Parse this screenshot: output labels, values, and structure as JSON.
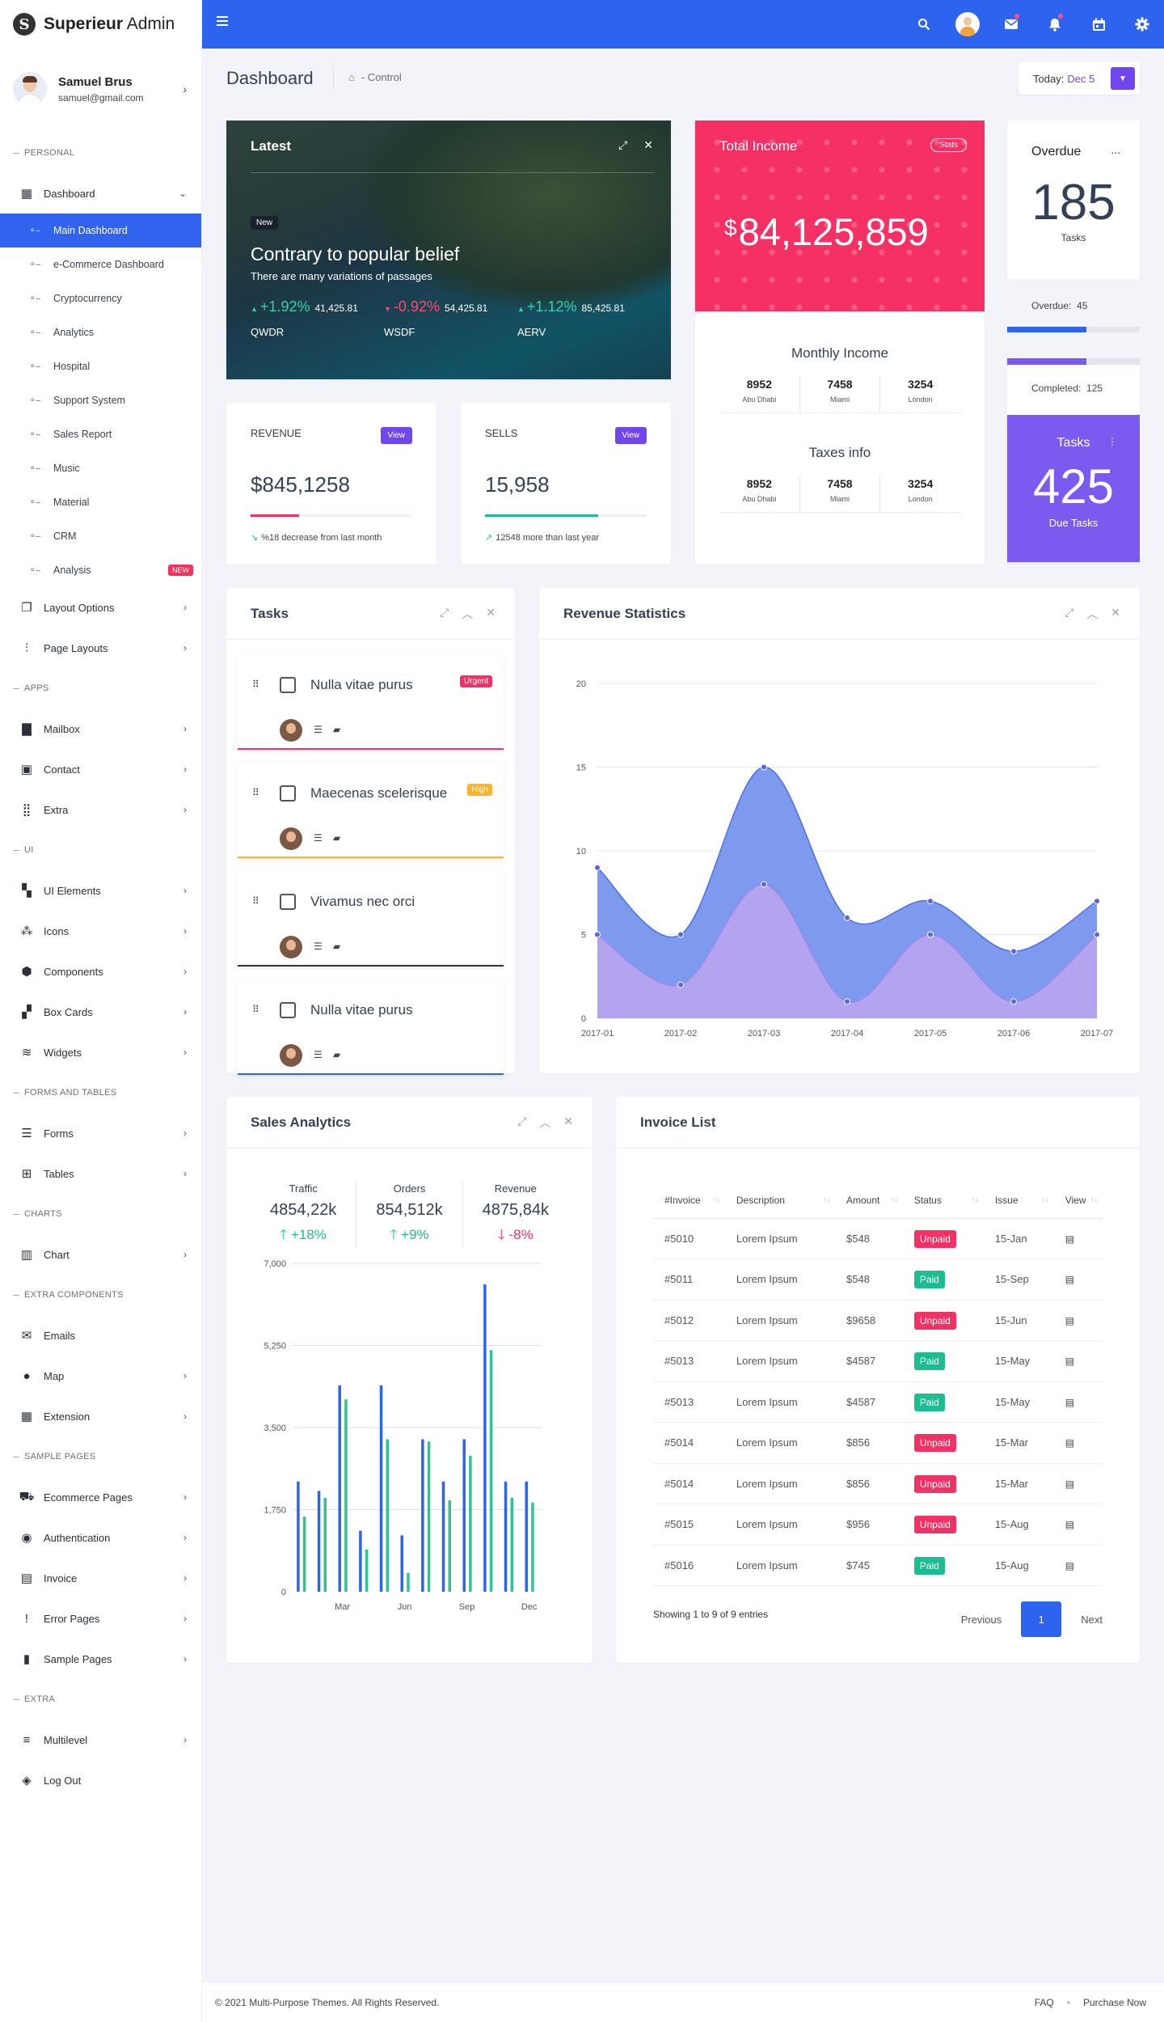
{
  "brand": {
    "name_bold": "Superieur",
    "name_rest": " Admin",
    "logo_letter": "S"
  },
  "user": {
    "name": "Samuel Brus",
    "email": "samuel@gmail.com"
  },
  "sidebar": {
    "sections": [
      {
        "header": "PERSONAL"
      },
      {
        "header": "APPS"
      },
      {
        "header": "UI"
      },
      {
        "header": "FORMS And TABLES"
      },
      {
        "header": "CHARTS"
      },
      {
        "header": "EXTRA COMPONENTS"
      },
      {
        "header": "SAMPLE PAGES"
      },
      {
        "header": "EXTRA"
      }
    ],
    "dashboard": {
      "label": "Dashboard",
      "children": [
        "Main Dashboard",
        "e-Commerce Dashboard",
        "Cryptocurrency",
        "Analytics",
        "Hospital",
        "Support System",
        "Sales Report",
        "Music",
        "Material",
        "CRM",
        "Analysis"
      ],
      "new_badge": "NEW"
    },
    "personal_items": [
      "Layout Options",
      "Page Layouts"
    ],
    "apps_items": [
      "Mailbox",
      "Contact",
      "Extra"
    ],
    "ui_items": [
      "UI Elements",
      "Icons",
      "Components",
      "Box Cards",
      "Widgets"
    ],
    "forms_items": [
      "Forms",
      "Tables"
    ],
    "chart_items": [
      "Chart"
    ],
    "extra_comp_items": [
      "Emails",
      "Map",
      "Extension"
    ],
    "sample_items": [
      "Ecommerce Pages",
      "Authentication",
      "Invoice",
      "Error Pages",
      "Sample Pages"
    ],
    "extra_items": [
      "Multilevel",
      "Log Out"
    ]
  },
  "header": {
    "page_title": "Dashboard",
    "crumb": "- Control",
    "today_label": "Today:",
    "today_date": "Dec 5"
  },
  "latest": {
    "title": "Latest",
    "pill": "New",
    "headline": "Contrary to popular belief",
    "sub": "There are many variations of passages",
    "tickers": [
      {
        "change": "+1.92%",
        "value": "41,425.81",
        "name": "QWDR",
        "dir": "up"
      },
      {
        "change": "-0.92%",
        "value": "54,425.81",
        "name": "WSDF",
        "dir": "down"
      },
      {
        "change": "+1.12%",
        "value": "85,425.81",
        "name": "AERV",
        "dir": "up"
      }
    ]
  },
  "revenue": {
    "label": "REVENUE",
    "button": "View",
    "value": "$845,1258",
    "note": "%18 decrease from last month",
    "progress": 0.3,
    "color": "#f43064"
  },
  "sells": {
    "label": "SELLS",
    "button": "View",
    "value": "15,958",
    "note": "12548 more than last year",
    "progress": 0.7,
    "color": "#1cbd90"
  },
  "income": {
    "title": "Total Income",
    "badge": "Stats",
    "currency": "$",
    "amount": "84,125,859",
    "monthly_title": "Monthly Income",
    "monthly": [
      {
        "n": "8952",
        "c": "Abu Dhabi"
      },
      {
        "n": "7458",
        "c": "Miami"
      },
      {
        "n": "3254",
        "c": "London"
      }
    ],
    "taxes_title": "Taxes info",
    "taxes": [
      {
        "n": "8952",
        "c": "Abu Dhabi"
      },
      {
        "n": "7458",
        "c": "Miami"
      },
      {
        "n": "3254",
        "c": "London"
      }
    ]
  },
  "overdue": {
    "title": "Overdue",
    "more": "...",
    "number": "185",
    "sub": "Tasks",
    "foot_label": "Overdue:",
    "foot_value": "45",
    "progress": 0.6
  },
  "completed": {
    "label": "Completed:",
    "value": "125",
    "progress": 0.6,
    "title": "Tasks",
    "number": "425",
    "sub": "Due Tasks"
  },
  "tasks": {
    "title": "Tasks",
    "items": [
      {
        "text": "Nulla vitae purus",
        "tag": "Urgent",
        "tag_color": "#f43064",
        "line": "#f43064"
      },
      {
        "text": "Maecenas scelerisque",
        "tag": "High",
        "tag_color": "#ffb22b",
        "line": "#ffb22b"
      },
      {
        "text": "Vivamus nec orci",
        "tag": "",
        "tag_color": "",
        "line": "#333333"
      },
      {
        "text": "Nulla vitae purus",
        "tag": "",
        "tag_color": "",
        "line": "#2c63ef"
      }
    ]
  },
  "revenue_stats": {
    "title": "Revenue Statistics"
  },
  "sales_analytics": {
    "title": "Sales Analytics",
    "kpis": [
      {
        "label": "Traffic",
        "value": "4854,22k",
        "pct": "+18%",
        "dir": "up"
      },
      {
        "label": "Orders",
        "value": "854,512k",
        "pct": "+9%",
        "dir": "up"
      },
      {
        "label": "Revenue",
        "value": "4875,84k",
        "pct": "-8%",
        "dir": "down"
      }
    ]
  },
  "invoice": {
    "title": "Invoice List",
    "columns": [
      "#Invoice",
      "Description",
      "Amount",
      "Status",
      "Issue",
      "View"
    ],
    "rows": [
      [
        "#5010",
        "Lorem Ipsum",
        "$548",
        "Unpaid",
        "15-Jan"
      ],
      [
        "#5011",
        "Lorem Ipsum",
        "$548",
        "Paid",
        "15-Sep"
      ],
      [
        "#5012",
        "Lorem Ipsum",
        "$9658",
        "Unpaid",
        "15-Jun"
      ],
      [
        "#5013",
        "Lorem Ipsum",
        "$4587",
        "Paid",
        "15-May"
      ],
      [
        "#5013",
        "Lorem Ipsum",
        "$4587",
        "Paid",
        "15-May"
      ],
      [
        "#5014",
        "Lorem Ipsum",
        "$856",
        "Unpaid",
        "15-Mar"
      ],
      [
        "#5014",
        "Lorem Ipsum",
        "$856",
        "Unpaid",
        "15-Mar"
      ],
      [
        "#5015",
        "Lorem Ipsum",
        "$956",
        "Unpaid",
        "15-Aug"
      ],
      [
        "#5016",
        "Lorem Ipsum",
        "$745",
        "Paid",
        "15-Aug"
      ]
    ],
    "showing": "Showing 1 to 9 of 9 entries",
    "prev": "Previous",
    "page": "1",
    "next": "Next"
  },
  "footer": {
    "copyright": "© 2021 Multi-Purpose Themes. All Rights Reserved.",
    "links": [
      "FAQ",
      "Purchase Now"
    ]
  },
  "chart_data": [
    {
      "type": "area",
      "title": "Revenue Statistics",
      "x": [
        "2017-01",
        "2017-02",
        "2017-03",
        "2017-04",
        "2017-05",
        "2017-06",
        "2017-07"
      ],
      "ylim": [
        0,
        20
      ],
      "yticks": [
        0,
        5,
        10,
        15,
        20
      ],
      "series": [
        {
          "values": [
            9,
            5,
            15,
            6,
            7,
            4,
            7
          ],
          "color": "#6f8fec"
        },
        {
          "values": [
            5,
            2,
            8,
            1,
            5,
            1,
            5
          ],
          "color": "#b7a4ef"
        }
      ]
    },
    {
      "type": "bar",
      "title": "Sales Analytics",
      "xticks": [
        "Mar",
        "Jun",
        "Sep",
        "Dec"
      ],
      "ylim": [
        0,
        7000
      ],
      "yticks": [
        "0",
        "1,750",
        "3,500",
        "5,250",
        "7,000"
      ],
      "series": [
        {
          "values": [
            2350,
            2150,
            4400,
            1300,
            4400,
            1200,
            3250,
            2350,
            3250,
            6550,
            2350,
            2350
          ],
          "color": "#2c63ef"
        },
        {
          "values": [
            1600,
            2000,
            4100,
            900,
            3250,
            400,
            3200,
            1950,
            2900,
            5150,
            2000,
            1900
          ],
          "color": "#2fc38f"
        }
      ]
    }
  ]
}
